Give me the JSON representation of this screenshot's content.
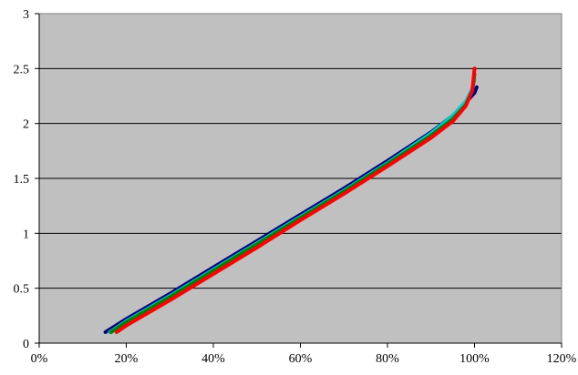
{
  "chart_data": {
    "type": "line",
    "title": "",
    "xlabel": "",
    "ylabel": "",
    "xlim": [
      0,
      1.2
    ],
    "ylim": [
      0,
      3
    ],
    "grid": "horizontal",
    "legend": "none",
    "x_tick_labels": [
      "0%",
      "20%",
      "40%",
      "60%",
      "80%",
      "100%",
      "120%"
    ],
    "y_tick_labels": [
      "0",
      "0.5",
      "1",
      "1.5",
      "2",
      "2.5",
      "3"
    ],
    "x_ticks": [
      0,
      0.2,
      0.4,
      0.6,
      0.8,
      1.0,
      1.2
    ],
    "y_ticks": [
      0,
      0.5,
      1,
      1.5,
      2,
      2.5,
      3
    ],
    "plot_background": "#c0c0c0",
    "series": [
      {
        "color": "#000080",
        "x": [
          0.152,
          0.2,
          0.3,
          0.4,
          0.5,
          0.6,
          0.7,
          0.8,
          0.9,
          0.95,
          0.98,
          1.0,
          1.005
        ],
        "y": [
          0.1,
          0.22,
          0.45,
          0.69,
          0.93,
          1.17,
          1.41,
          1.66,
          1.92,
          2.07,
          2.19,
          2.28,
          2.33
        ]
      },
      {
        "color": "#00cccc",
        "x": [
          0.162,
          0.2,
          0.3,
          0.4,
          0.5,
          0.6,
          0.7,
          0.8,
          0.9,
          0.95,
          0.98,
          0.995,
          1.0
        ],
        "y": [
          0.1,
          0.2,
          0.43,
          0.67,
          0.91,
          1.15,
          1.39,
          1.64,
          1.91,
          2.07,
          2.2,
          2.32,
          2.4
        ]
      },
      {
        "color": "#008000",
        "x": [
          0.165,
          0.2,
          0.3,
          0.4,
          0.5,
          0.6,
          0.7,
          0.8,
          0.9,
          0.95,
          0.98,
          0.995,
          1.0
        ],
        "y": [
          0.1,
          0.19,
          0.42,
          0.66,
          0.9,
          1.14,
          1.38,
          1.63,
          1.89,
          2.04,
          2.17,
          2.3,
          2.45
        ]
      },
      {
        "color": "#ff0000",
        "x": [
          0.178,
          0.2,
          0.3,
          0.4,
          0.5,
          0.6,
          0.7,
          0.8,
          0.9,
          0.95,
          0.98,
          0.995,
          1.0
        ],
        "y": [
          0.1,
          0.16,
          0.39,
          0.63,
          0.87,
          1.12,
          1.36,
          1.61,
          1.87,
          2.02,
          2.16,
          2.3,
          2.5
        ]
      }
    ]
  }
}
